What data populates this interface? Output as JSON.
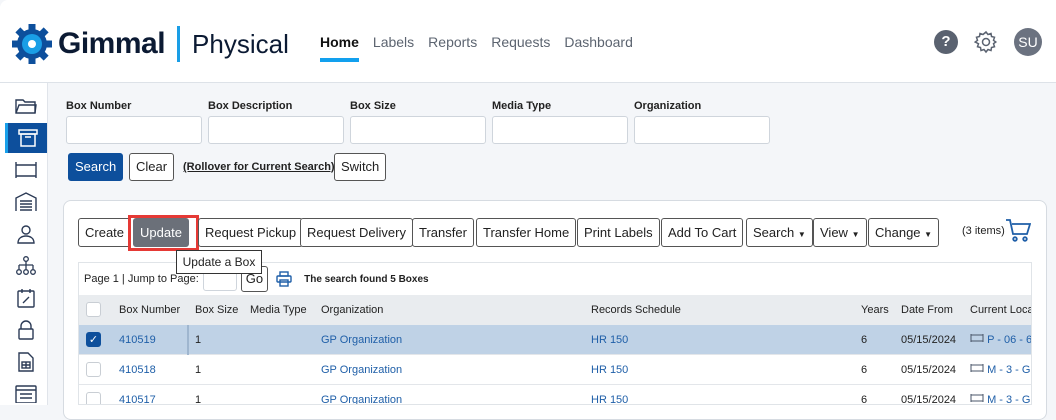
{
  "header": {
    "brand": "Gimmal",
    "product": "Physical",
    "nav": [
      "Home",
      "Labels",
      "Reports",
      "Requests",
      "Dashboard"
    ],
    "active_nav": "Home",
    "user_initials": "SU",
    "help": "?"
  },
  "sidebar": {
    "icons": [
      "folder-icon",
      "box-icon",
      "shelf-icon",
      "warehouse-icon",
      "user-icon",
      "org-chart-icon",
      "calendar-edit-icon",
      "lock-icon",
      "spreadsheet-icon",
      "form-icon"
    ],
    "active": "box-icon"
  },
  "filters": {
    "labels": [
      "Box Number",
      "Box Description",
      "Box Size",
      "Media Type",
      "Organization"
    ],
    "values": [
      "",
      "",
      "",
      "",
      ""
    ],
    "search": "Search",
    "clear": "Clear",
    "rollover": "(Rollover for Current Search)",
    "switch": "Switch"
  },
  "toolbar": {
    "buttons": [
      "Create",
      "Update",
      "Request Pickup",
      "Request Delivery",
      "Transfer",
      "Transfer Home",
      "Print Labels",
      "Add To Cart",
      "Search",
      "View",
      "Change"
    ],
    "tooltip": "Update a Box",
    "cart": "(3 items)"
  },
  "pager": {
    "text": "Page 1 | Jump to Page:",
    "go": "Go",
    "found": "The search found 5 Boxes"
  },
  "table": {
    "columns": [
      "Box Number",
      "Box Size",
      "Media Type",
      "Organization",
      "Records Schedule",
      "Years",
      "Date From",
      "Current Loca"
    ],
    "rows": [
      {
        "box": "410519",
        "size": "1",
        "media": "",
        "org": "GP Organization",
        "schedule": "HR 150",
        "years": "6",
        "from": "05/15/2024",
        "loc": "P - 06 - 6",
        "selected": true
      },
      {
        "box": "410518",
        "size": "1",
        "media": "",
        "org": "GP Organization",
        "schedule": "HR 150",
        "years": "6",
        "from": "05/15/2024",
        "loc": "M - 3 - G",
        "selected": false
      },
      {
        "box": "410517",
        "size": "1",
        "media": "",
        "org": "GP Organization",
        "schedule": "HR 150",
        "years": "6",
        "from": "05/15/2024",
        "loc": "M - 3 - G",
        "selected": false
      }
    ]
  },
  "colors": {
    "primary": "#0d4f9c",
    "accent": "#12a0ee",
    "highlight": "#e53935",
    "selected_row": "#bfd2e6"
  }
}
